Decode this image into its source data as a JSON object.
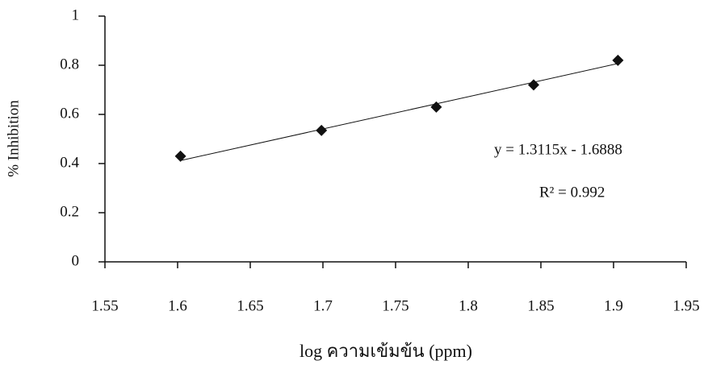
{
  "chart_data": {
    "type": "scatter",
    "x_label": "log ความเข้มข้น (ppm)",
    "y_label": "% Inhibition",
    "x": [
      1.602,
      1.699,
      1.778,
      1.845,
      1.903
    ],
    "values": [
      0.43,
      0.535,
      0.63,
      0.72,
      0.82
    ],
    "color": "#111111",
    "xlim": [
      1.55,
      1.95
    ],
    "xticks": [
      1.55,
      1.6,
      1.65,
      1.7,
      1.75,
      1.8,
      1.85,
      1.9,
      1.95
    ],
    "ylim": [
      0,
      1
    ],
    "yticks": [
      0,
      0.2,
      0.4,
      0.6,
      0.8,
      1
    ],
    "trendline": {
      "slope": 1.3115,
      "intercept": -1.6888
    },
    "annotations": [
      "y = 1.3115x - 1.6888",
      "R² = 0.992"
    ]
  }
}
